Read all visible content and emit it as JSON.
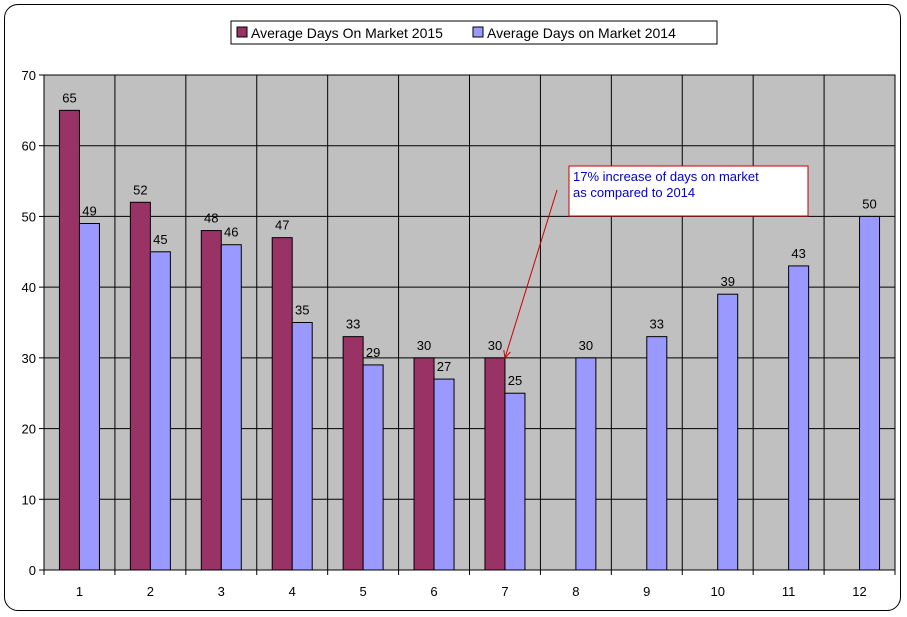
{
  "chart_data": {
    "type": "bar",
    "categories": [
      "1",
      "2",
      "3",
      "4",
      "5",
      "6",
      "7",
      "8",
      "9",
      "10",
      "11",
      "12"
    ],
    "series": [
      {
        "name": "Average Days On Market 2015",
        "color": "#993366",
        "values": [
          65,
          52,
          48,
          47,
          33,
          30,
          30,
          null,
          null,
          null,
          null,
          null
        ]
      },
      {
        "name": "Average Days on Market 2014",
        "color": "#9999ff",
        "values": [
          49,
          45,
          46,
          35,
          29,
          27,
          25,
          30,
          33,
          39,
          43,
          50
        ]
      }
    ],
    "ylim": [
      0,
      70
    ],
    "yticks": [
      0,
      10,
      20,
      30,
      40,
      50,
      60,
      70
    ],
    "grid": true,
    "plot_background": "#c0c0c0",
    "legend_position": "top-center",
    "annotation": {
      "lines": [
        "17% increase of days on market",
        "as compared to 2014"
      ],
      "text_color": "#0000cc",
      "border_color": "#cc0000",
      "points_to_category": "7",
      "points_to_value": 30
    }
  }
}
